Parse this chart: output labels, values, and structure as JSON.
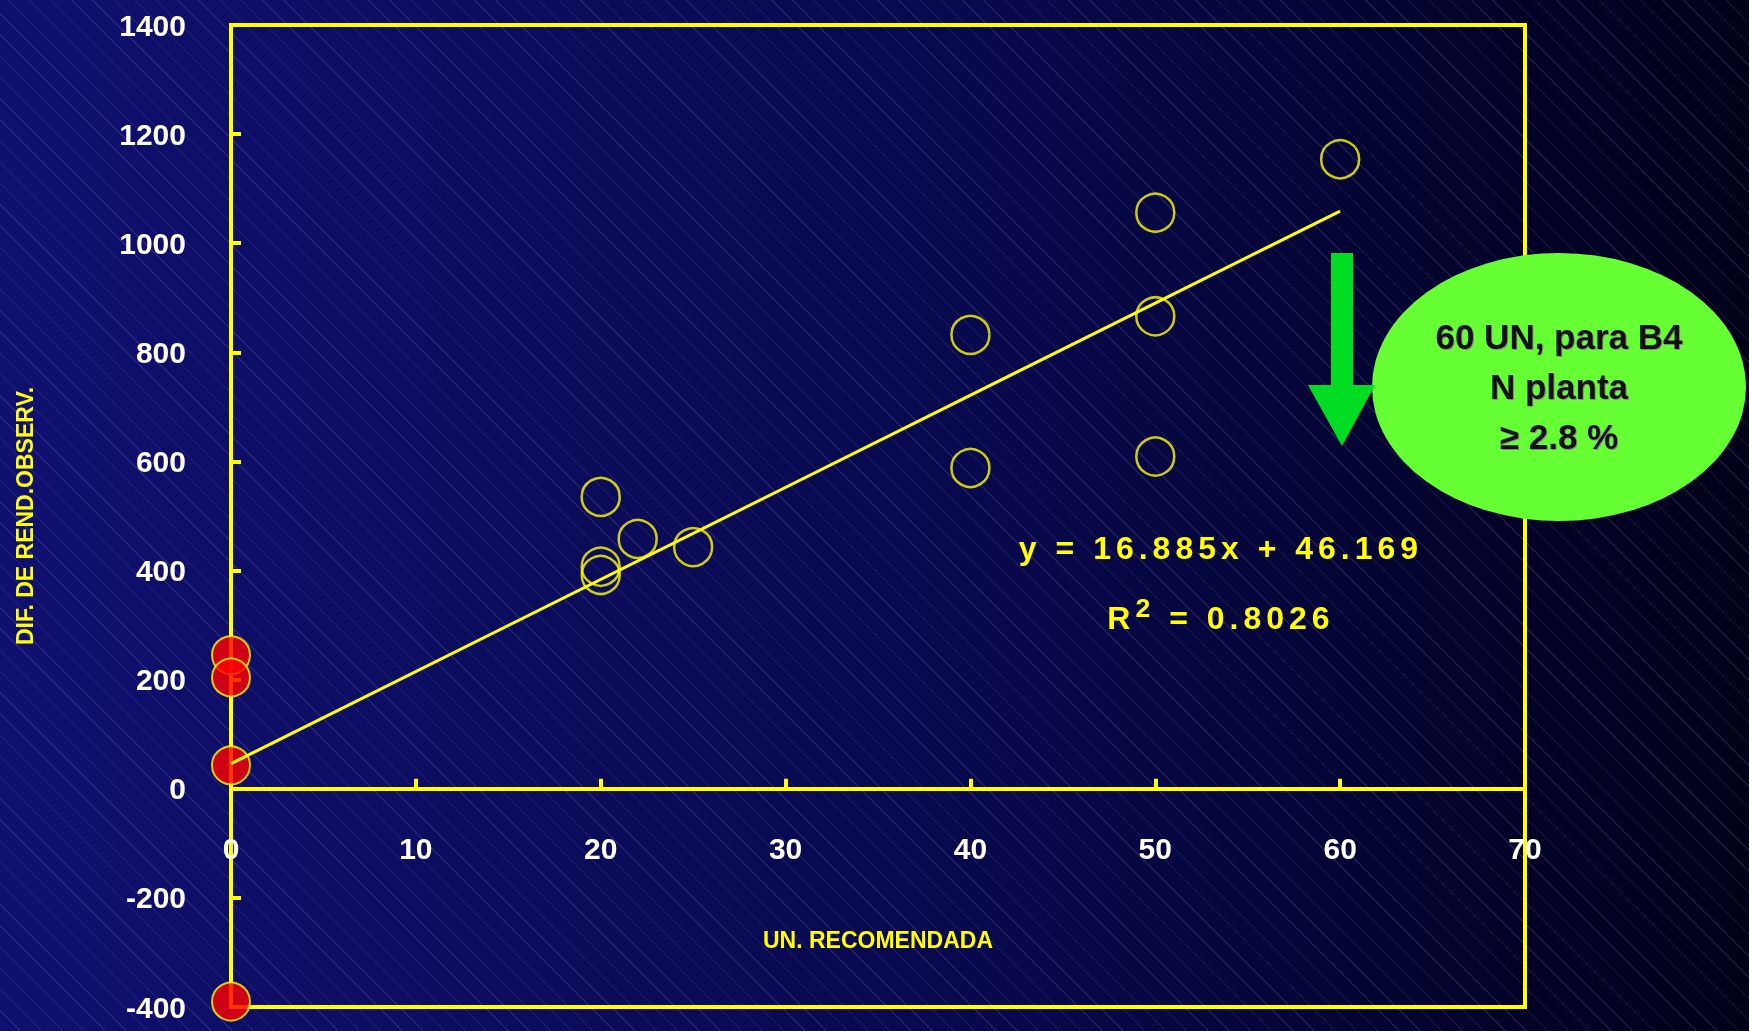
{
  "chart_data": {
    "type": "scatter",
    "xlabel": "UN. RECOMENDADA",
    "ylabel": "DIF. DE REND.OBSERV.",
    "xlim": [
      0,
      70
    ],
    "xticks": [
      0,
      10,
      20,
      30,
      40,
      50,
      60,
      70
    ],
    "ylim": [
      -400,
      1400
    ],
    "yticks": [
      -400,
      -200,
      0,
      200,
      400,
      600,
      800,
      1000,
      1200,
      1400
    ],
    "grid": false,
    "series": [
      {
        "color": "#ffff00",
        "marker": "circle",
        "x": [
          20,
          20,
          20,
          22,
          25,
          40,
          40,
          50,
          50,
          50,
          60
        ],
        "values": [
          535,
          407,
          392,
          458,
          443,
          832,
          588,
          1056,
          866,
          609,
          1154
        ]
      },
      {
        "color": "#ff0000",
        "marker": "circle",
        "x": [
          0,
          0,
          0,
          0
        ],
        "values": [
          245,
          204,
          43,
          -390
        ]
      },
      {
        "type": "line",
        "color": "#ffff00",
        "marker": "none",
        "x": [
          0,
          60
        ],
        "values": [
          46,
          1059
        ]
      }
    ],
    "annotations": [
      "y = 16.885x + 46.169",
      "R$^{2}$ = 0.8026",
      "60 UN, para B4",
      "N planta",
      "≥ 2.8 %"
    ]
  }
}
